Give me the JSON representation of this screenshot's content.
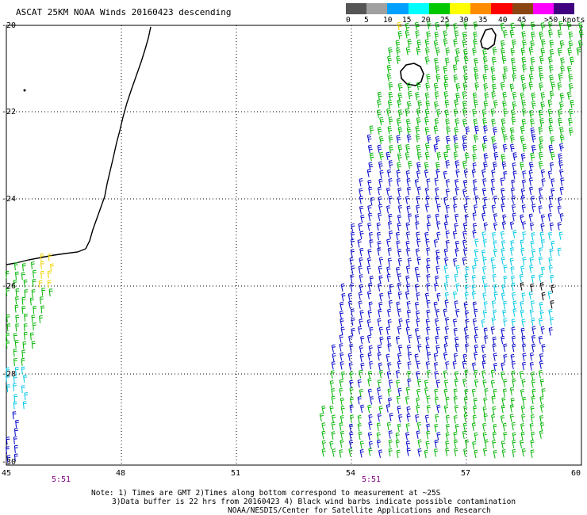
{
  "title": "ASCAT 25KM NOAA Winds 20160423 descending",
  "legend": {
    "labels": [
      "0",
      "5",
      "10",
      "15",
      "20",
      "25",
      "30",
      "35",
      "40",
      "45",
      ">50 knots"
    ],
    "colors": [
      "#555555",
      "#a0a0a0",
      "#00a0ff",
      "#00ffff",
      "#00c800",
      "#ffff00",
      "#ff8c00",
      "#ff0000",
      "#8b4513",
      "#ff00ff",
      "#400080"
    ]
  },
  "axes": {
    "lat_labels": [
      "-20",
      "-22",
      "-24",
      "-26",
      "-28",
      "-30"
    ],
    "lon_labels": [
      "45",
      "48",
      "51",
      "54",
      "57",
      "60"
    ]
  },
  "times": [
    "5:51",
    "5:51"
  ],
  "note": {
    "line1": "Note: 1) Times are GMT 2)Times along bottom correspond to measurement at ~25S",
    "line2": "3)Data buffer is 22 hrs from 20160423 4) Black wind barbs indicate possible contamination",
    "line3": "NOAA/NESDIS/Center for Satellite Applications and Research"
  },
  "barb_colors": {
    "blue": "#0000c8",
    "green": "#00b400",
    "cyan": "#00c8e6",
    "yellow": "#f0d200",
    "black": "#000000"
  }
}
